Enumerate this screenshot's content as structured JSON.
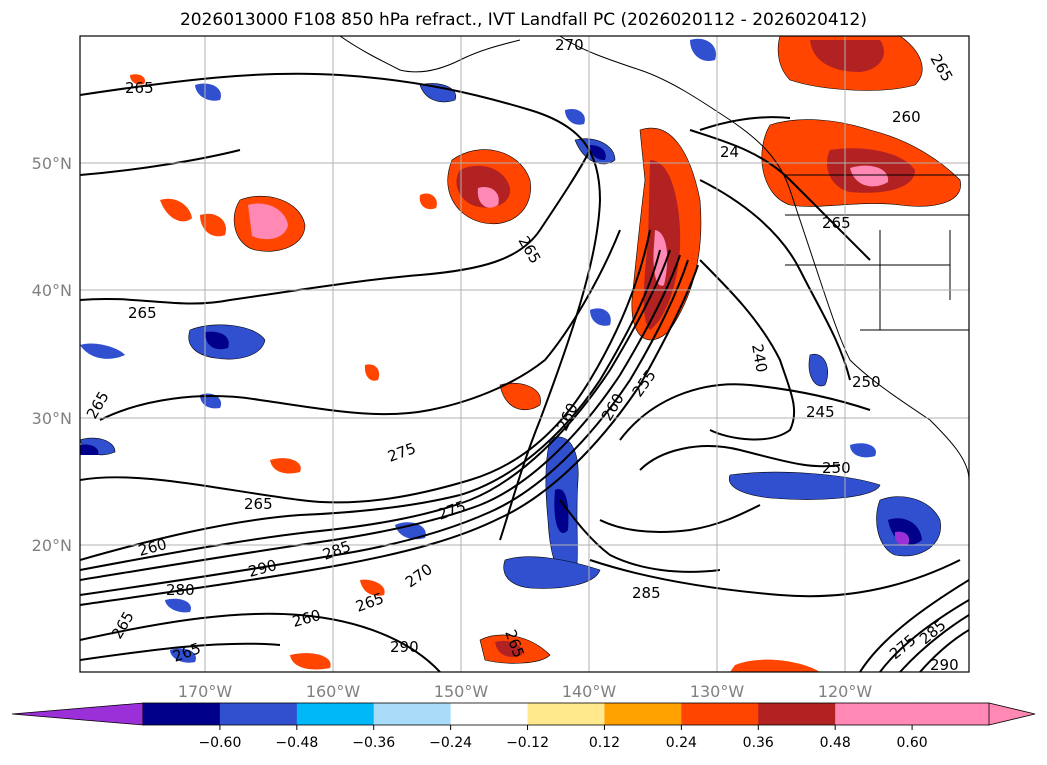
{
  "title": "2026013000 F108 850 hPa refract., IVT Landfall PC (2026020112 - 2026020412)",
  "map": {
    "lon_labels": [
      "170°W",
      "160°W",
      "150°W",
      "140°W",
      "130°W",
      "120°W"
    ],
    "lat_labels": [
      "50°N",
      "40°N",
      "30°N",
      "20°N"
    ],
    "contour_labels": [
      "270",
      "265",
      "265",
      "265",
      "260",
      "265",
      "24",
      "250",
      "255",
      "260",
      "265",
      "240",
      "245",
      "250",
      "260",
      "265",
      "275",
      "265",
      "260",
      "275",
      "280",
      "290",
      "265",
      "260",
      "270",
      "265",
      "290",
      "285",
      "285",
      "265",
      "265",
      "290",
      "285",
      "275"
    ]
  },
  "colorbar": {
    "ticks": [
      "−0.60",
      "−0.48",
      "−0.36",
      "−0.24",
      "−0.12",
      "0.12",
      "0.24",
      "0.36",
      "0.48",
      "0.60"
    ],
    "colors": [
      "#9b30d8",
      "#00008b",
      "#3050d0",
      "#00b8f8",
      "#a8dcf8",
      "#ffffff",
      "#ffe98c",
      "#ffa200",
      "#ff4500",
      "#b22222",
      "#ff88b4",
      "#ff88b4"
    ],
    "under_color": "#9b30d8",
    "over_color": "#ff88b4"
  }
}
